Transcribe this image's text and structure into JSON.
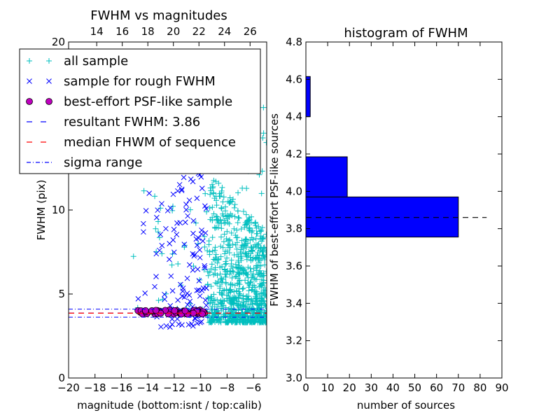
{
  "chart_data": [
    {
      "type": "scatter",
      "title": "FWHM vs magnitudes",
      "xlabel": "magnitude (bottom:isnt / top:calib)",
      "ylabel": "FWHM (pix)",
      "xlim": [
        -20,
        -5
      ],
      "ylim": [
        0,
        20
      ],
      "xticks": [
        -20,
        -18,
        -16,
        -14,
        -12,
        -10,
        -8,
        -6
      ],
      "xticklabels": [
        "−20",
        "−18",
        "−16",
        "−14",
        "−12",
        "−10",
        "−8",
        "−6"
      ],
      "yticks": [
        0,
        5,
        10,
        20
      ],
      "top_xticks": [
        14,
        16,
        18,
        20,
        22,
        24,
        26
      ],
      "top_xlim": [
        11.8,
        27.3
      ],
      "grid": false,
      "legend_position": "upper-left",
      "series": [
        {
          "name": "all sample",
          "marker": "plus",
          "color": "#00bfbf",
          "clusters": [
            {
              "xmin": -9.5,
              "xmax": -5.0,
              "ymin": 2.4,
              "ymax": 20.0
            },
            {
              "xmin": -15.3,
              "xmax": -9.3,
              "ymin": 3.8,
              "ymax": 11.2
            }
          ]
        },
        {
          "name": "sample for rough FWHM",
          "marker": "x",
          "color": "#0000ff",
          "clusters": [
            {
              "xmin": -14.8,
              "xmax": -9.5,
              "ymin": 3.0,
              "ymax": 12.8
            }
          ]
        },
        {
          "name": "best-effort PSF-like sample",
          "marker": "circle",
          "color": "#bf00bf",
          "clusters": [
            {
              "xmin": -14.8,
              "xmax": -9.6,
              "ymin": 3.8,
              "ymax": 4.05
            }
          ]
        },
        {
          "name": "resultant FWHM: 3.86",
          "type": "hline",
          "y": 3.86,
          "color": "#0000ff",
          "style": "dashed"
        },
        {
          "name": "median FHWM of sequence",
          "type": "hline",
          "y": 3.86,
          "color": "#ff0000",
          "style": "dashed"
        },
        {
          "name": "sigma range",
          "type": "hlines",
          "y": [
            3.62,
            4.1
          ],
          "color": "#0000ff",
          "style": "dashdot"
        }
      ]
    },
    {
      "type": "bar",
      "orientation": "horizontal",
      "title": "histogram of FWHM",
      "xlabel": "number of sources",
      "ylabel": "FWHM of best-effort PSF-like sources",
      "xlim": [
        0,
        90
      ],
      "ylim": [
        3.0,
        4.8
      ],
      "xticks": [
        0,
        10,
        20,
        30,
        40,
        50,
        60,
        70,
        80,
        90
      ],
      "yticks": [
        3.0,
        3.2,
        3.4,
        3.6,
        3.8,
        4.0,
        4.2,
        4.4,
        4.6,
        4.8
      ],
      "yticklabels": [
        "3.0",
        "3.2",
        "3.4",
        "3.6",
        "3.8",
        "4.0",
        "4.2",
        "4.4",
        "4.6",
        "4.8"
      ],
      "bins": [
        {
          "ymin": 3.755,
          "ymax": 3.97,
          "count": 70
        },
        {
          "ymin": 3.97,
          "ymax": 4.185,
          "count": 19
        },
        {
          "ymin": 4.185,
          "ymax": 4.4,
          "count": 0
        },
        {
          "ymin": 4.4,
          "ymax": 4.615,
          "count": 2
        }
      ],
      "bar_color": "#0000ff",
      "reference_line": {
        "y": 3.86,
        "style": "dashed",
        "color": "#000000",
        "x_extent": [
          0,
          83
        ]
      }
    }
  ]
}
